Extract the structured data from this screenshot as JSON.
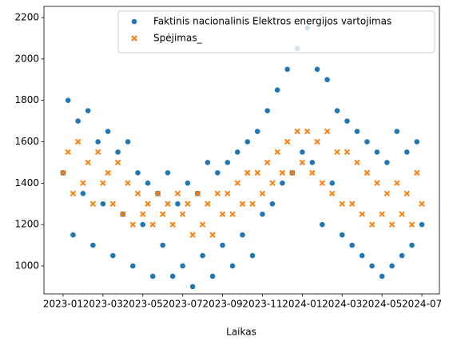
{
  "chart_data": {
    "type": "scatter",
    "xlabel": "Laikas",
    "xlim": [
      -0.96,
      18.88
    ],
    "xticks": [
      {
        "value": 0,
        "label": "2023-01"
      },
      {
        "value": 2,
        "label": "2023-03"
      },
      {
        "value": 4,
        "label": "2023-05"
      },
      {
        "value": 6,
        "label": "2023-07"
      },
      {
        "value": 8,
        "label": "2023-09"
      },
      {
        "value": 10,
        "label": "2023-11"
      },
      {
        "value": 12,
        "label": "2024-01"
      },
      {
        "value": 14,
        "label": "2024-03"
      },
      {
        "value": 16,
        "label": "2024-05"
      },
      {
        "value": 18,
        "label": "2024-07"
      }
    ],
    "ylim": [
      865,
      2254
    ],
    "yticks": [
      1000,
      1200,
      1400,
      1600,
      1800,
      2000,
      2200
    ],
    "legend": "upper right",
    "x": [
      0,
      0.25,
      0.5,
      0.75,
      1,
      1.25,
      1.5,
      1.75,
      2,
      2.25,
      2.5,
      2.75,
      3,
      3.25,
      3.5,
      3.75,
      4,
      4.25,
      4.5,
      4.75,
      5,
      5.25,
      5.5,
      5.75,
      6,
      6.25,
      6.5,
      6.75,
      7,
      7.25,
      7.5,
      7.75,
      8,
      8.25,
      8.5,
      8.75,
      9,
      9.25,
      9.5,
      9.75,
      10,
      10.25,
      10.5,
      10.75,
      11,
      11.25,
      11.5,
      11.75,
      12,
      12.25,
      12.5,
      12.75,
      13,
      13.25,
      13.5,
      13.75,
      14,
      14.25,
      14.5,
      14.75,
      15,
      15.25,
      15.5,
      15.75,
      16,
      16.25,
      16.5,
      16.75,
      17,
      17.25,
      17.5,
      17.75,
      18
    ],
    "series": [
      {
        "name": "Faktinis nacionalinis Elektros energijos vartojimas",
        "color": "#1f77b4",
        "marker": "circle",
        "values": [
          1450,
          1800,
          1150,
          1700,
          1350,
          1750,
          1100,
          1600,
          1300,
          1650,
          1050,
          1550,
          1250,
          1600,
          1000,
          1450,
          1200,
          1400,
          950,
          1350,
          1100,
          1450,
          950,
          1300,
          1000,
          1400,
          900,
          1350,
          1050,
          1500,
          950,
          1450,
          1100,
          1500,
          1000,
          1550,
          1150,
          1600,
          1050,
          1650,
          1250,
          1750,
          1300,
          1850,
          1400,
          1950,
          1450,
          2050,
          1550,
          2150,
          1500,
          1950,
          1200,
          1900,
          1400,
          1750,
          1150,
          1700,
          1100,
          1650,
          1050,
          1600,
          1000,
          1550,
          950,
          1500,
          1000,
          1650,
          1050,
          1550,
          1100,
          1600,
          1200
        ]
      },
      {
        "name": "Spėjimas_",
        "color": "#ff7f0e",
        "marker": "x",
        "values": [
          1450,
          1550,
          1350,
          1600,
          1400,
          1500,
          1300,
          1550,
          1400,
          1450,
          1300,
          1500,
          1250,
          1400,
          1200,
          1350,
          1250,
          1300,
          1200,
          1350,
          1250,
          1300,
          1200,
          1350,
          1250,
          1300,
          1150,
          1350,
          1200,
          1300,
          1150,
          1350,
          1250,
          1350,
          1250,
          1400,
          1300,
          1450,
          1300,
          1450,
          1350,
          1500,
          1400,
          1550,
          1450,
          1600,
          1450,
          1650,
          1500,
          1650,
          1450,
          1600,
          1400,
          1650,
          1350,
          1550,
          1300,
          1550,
          1300,
          1500,
          1250,
          1450,
          1200,
          1400,
          1250,
          1350,
          1200,
          1400,
          1250,
          1350,
          1200,
          1450,
          1300
        ]
      }
    ]
  }
}
